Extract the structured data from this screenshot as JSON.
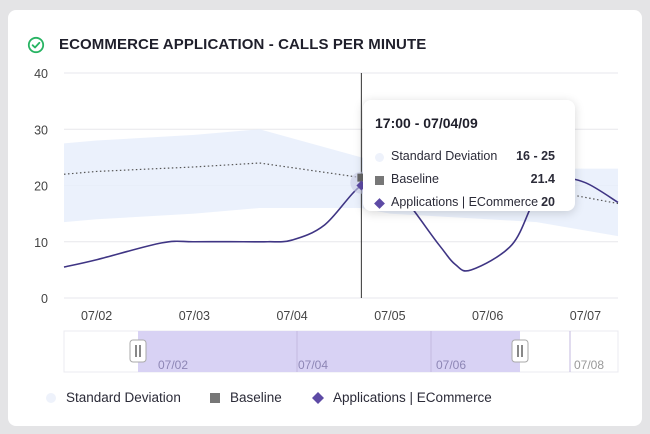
{
  "title": "ECOMMERCE APPLICATION - CALLS PER MINUTE",
  "status_icon": "check-circle-icon",
  "colors": {
    "accent": "#28b463",
    "line": "#3f3584",
    "band": "#e8eefb",
    "brush": "#d8d2f4"
  },
  "chart_data": {
    "type": "line",
    "title": "ECOMMERCE APPLICATION - CALLS PER MINUTE",
    "xlabel": "",
    "ylabel": "",
    "ylim": [
      0,
      40
    ],
    "yticks": [
      0,
      10,
      20,
      30,
      40
    ],
    "x_range": [
      "07/01 16:00",
      "07/07 08:00"
    ],
    "xticks": [
      "07/02",
      "07/03",
      "07/04",
      "07/05",
      "07/06",
      "07/07"
    ],
    "grid": true,
    "legend": "bottom",
    "series": [
      {
        "name": "Standard Deviation",
        "kind": "band",
        "x": [
          "07/01 16:00",
          "07/02 00:00",
          "07/03 00:00",
          "07/03 16:00",
          "07/04 17:00",
          "07/05 00:00",
          "07/06 00:00",
          "07/06 12:00",
          "07/07 08:00"
        ],
        "lower": [
          13.5,
          14,
          15,
          16,
          16,
          15,
          14,
          13.5,
          11
        ],
        "upper": [
          27.5,
          28,
          29,
          30,
          25,
          24,
          23.5,
          23,
          23
        ]
      },
      {
        "name": "Baseline",
        "kind": "dotted",
        "x": [
          "07/01 16:00",
          "07/02 00:00",
          "07/03 00:00",
          "07/03 16:00",
          "07/04 17:00",
          "07/05 00:00",
          "07/06 00:00",
          "07/06 12:00",
          "07/07 08:00"
        ],
        "values": [
          22,
          22.5,
          23.3,
          24,
          21.4,
          20.5,
          20,
          19.5,
          16.8
        ]
      },
      {
        "name": "Applications | ECommerce",
        "kind": "line",
        "x": [
          "07/01 16:00",
          "07/02 00:00",
          "07/02 16:00",
          "07/03 00:00",
          "07/03 12:00",
          "07/03 18:00",
          "07/04 00:00",
          "07/04 08:00",
          "07/04 17:00",
          "07/05 00:00",
          "07/05 12:00",
          "07/05 16:00",
          "07/05 20:00",
          "07/06 06:00",
          "07/06 12:00",
          "07/06 18:00",
          "07/07 00:00",
          "07/07 08:00"
        ],
        "values": [
          5.5,
          6.8,
          9.8,
          10,
          10,
          10,
          10.3,
          13,
          20,
          20.5,
          9.5,
          6,
          5,
          9.5,
          18,
          21,
          20.5,
          17
        ]
      }
    ],
    "brush": {
      "ticks": [
        "07/02",
        "07/04",
        "07/06",
        "07/08"
      ],
      "range": [
        "07/02",
        "07/07"
      ]
    }
  },
  "tooltip": {
    "title": "17:00 - 07/04/09",
    "rows": [
      {
        "label": "Standard Deviation",
        "value": "16 - 25"
      },
      {
        "label": "Baseline",
        "value": "21.4"
      },
      {
        "label": "Applications | ECommerce",
        "value": "20"
      }
    ]
  },
  "legend": [
    {
      "label": "Standard Deviation"
    },
    {
      "label": "Baseline"
    },
    {
      "label": "Applications | ECommerce"
    }
  ]
}
